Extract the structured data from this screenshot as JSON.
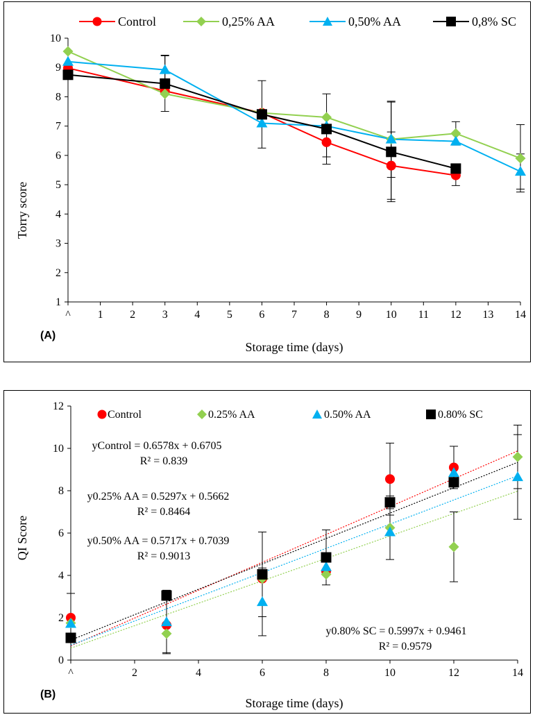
{
  "chart_data": [
    {
      "type": "line",
      "panel_label": "(A)",
      "xlabel": "Storage  time (days)",
      "ylabel": "Torry score",
      "xlim": [
        0,
        14
      ],
      "ylim": [
        1,
        10
      ],
      "x_ticks": [
        0,
        1,
        2,
        3,
        4,
        5,
        6,
        7,
        8,
        9,
        10,
        11,
        12,
        13,
        14
      ],
      "x_tick_labels": [
        "^",
        "1",
        "2",
        "3",
        "4",
        "5",
        "6",
        "7",
        "8",
        "9",
        "10",
        "11",
        "12",
        "13",
        "14"
      ],
      "y_ticks": [
        1,
        2,
        3,
        4,
        5,
        6,
        7,
        8,
        9,
        10
      ],
      "y_tick_labels": [
        "1",
        "2",
        "3",
        "4",
        "5",
        "6",
        "7",
        "8",
        "9",
        "10"
      ],
      "legend_position": "top",
      "series": [
        {
          "name": "Control",
          "color": "#ff0000",
          "marker": "circle",
          "x": [
            0,
            3,
            6,
            8,
            10,
            12
          ],
          "y": [
            8.98,
            8.2,
            7.45,
            6.45,
            5.65,
            5.32
          ],
          "err": [
            0,
            0,
            0,
            0.5,
            1.15,
            0.35
          ]
        },
        {
          "name": "0,25% AA",
          "color": "#92d050",
          "marker": "diamond",
          "x": [
            0,
            3,
            6,
            8,
            10,
            12,
            14
          ],
          "y": [
            9.55,
            8.1,
            7.45,
            7.3,
            6.55,
            6.75,
            5.9
          ],
          "err": [
            0,
            0,
            0,
            0,
            0,
            0.4,
            1.15
          ]
        },
        {
          "name": "0,50% AA",
          "color": "#00b0f0",
          "marker": "triangle",
          "x": [
            0,
            3,
            6,
            8,
            10,
            12,
            14
          ],
          "y": [
            9.2,
            8.92,
            7.1,
            7.0,
            6.55,
            6.48,
            5.45
          ],
          "err": [
            0,
            0.5,
            0,
            0,
            1.3,
            0,
            0.6
          ]
        },
        {
          "name": "0,8% SC",
          "color": "#000000",
          "marker": "square",
          "x": [
            0,
            3,
            6,
            8,
            10,
            12
          ],
          "y": [
            8.75,
            8.45,
            7.4,
            6.9,
            6.12,
            5.55
          ],
          "err": [
            0,
            0.95,
            1.15,
            1.2,
            1.7,
            0
          ]
        }
      ]
    },
    {
      "type": "scatter",
      "panel_label": "(B)",
      "xlabel": "Storage time (days)",
      "ylabel": "QI Score",
      "xlim": [
        0,
        14
      ],
      "ylim": [
        0,
        12
      ],
      "x_ticks": [
        0,
        2,
        4,
        6,
        8,
        10,
        12,
        14
      ],
      "x_tick_labels": [
        "^",
        "2",
        "4",
        "6",
        "8",
        "10",
        "12",
        "14"
      ],
      "y_ticks": [
        0,
        2,
        4,
        6,
        8,
        10,
        12
      ],
      "y_tick_labels": [
        "0",
        "2",
        "4",
        "6",
        "8",
        "10",
        "12"
      ],
      "legend_position": "top",
      "series": [
        {
          "name": "Control",
          "color": "#ff0000",
          "marker": "circle",
          "x": [
            0,
            3,
            6,
            8,
            10,
            12
          ],
          "y": [
            2.0,
            1.65,
            3.85,
            4.2,
            8.55,
            9.1
          ],
          "err": [
            1.15,
            1.3,
            0,
            0,
            1.7,
            1.0
          ],
          "trend": {
            "slope": 0.6578,
            "intercept": 0.6705
          }
        },
        {
          "name": "0.25% AA",
          "color": "#92d050",
          "marker": "diamond",
          "x": [
            0,
            3,
            6,
            8,
            10,
            12,
            14
          ],
          "y": [
            1.75,
            1.25,
            3.85,
            4.05,
            6.25,
            5.35,
            9.6
          ],
          "err": [
            0,
            0,
            0,
            0,
            0,
            1.65,
            1.5
          ],
          "trend": {
            "slope": 0.5297,
            "intercept": 0.5662
          }
        },
        {
          "name": "0.50% AA",
          "color": "#00b0f0",
          "marker": "triangle",
          "x": [
            0,
            3,
            6,
            8,
            10,
            12,
            14
          ],
          "y": [
            1.72,
            1.8,
            2.75,
            4.4,
            6.05,
            8.85,
            8.65
          ],
          "err": [
            0,
            1.5,
            1.6,
            0,
            1.3,
            0,
            2.0
          ],
          "trend": {
            "slope": 0.5717,
            "intercept": 0.7039
          }
        },
        {
          "name": "0.80% SC",
          "color": "#000000",
          "marker": "square",
          "x": [
            0,
            3,
            6,
            8,
            10,
            12
          ],
          "y": [
            1.05,
            3.05,
            4.05,
            4.85,
            7.45,
            8.4
          ],
          "err": [
            0,
            0,
            2.0,
            1.3,
            0.3,
            0
          ],
          "trend": {
            "slope": 0.5997,
            "intercept": 0.9461
          }
        }
      ],
      "equations": [
        {
          "line1": "yControl = 0.6578x + 0.6705",
          "line2": "R² = 0.839"
        },
        {
          "line1": "y0.25% AA = 0.5297x + 0.5662",
          "line2": "R² = 0.8464"
        },
        {
          "line1": "y0.50% AA = 0.5717x + 0.7039",
          "line2": "R² = 0.9013"
        },
        {
          "line1": "y0.80% SC = 0.5997x + 0.9461",
          "line2": "R² = 0.9579"
        }
      ]
    }
  ]
}
